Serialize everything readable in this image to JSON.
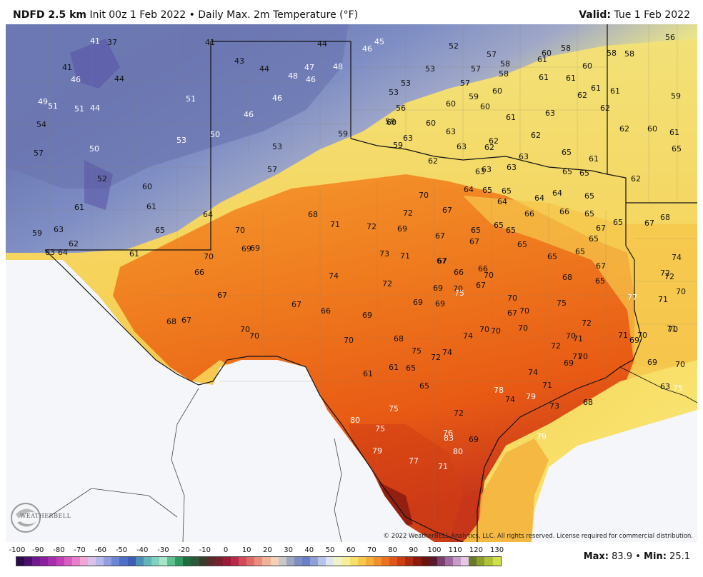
{
  "header": {
    "product": "NDFD 2.5 km",
    "init": "Init 00z 1 Feb 2022",
    "separator": "•",
    "field": "Daily Max. 2m Temperature (°F)",
    "valid_label": "Valid:",
    "valid_date": "Tue 1 Feb 2022"
  },
  "copyright": "© 2022 WeatherBELL Analytics, LLC. All rights reserved. License required for commercial distribution.",
  "logo_text": "WEATHERBELL",
  "legend": {
    "ticks": [
      "-100",
      "-90",
      "-80",
      "-70",
      "-60",
      "-50",
      "-40",
      "-30",
      "-20",
      "-10",
      "0",
      "10",
      "20",
      "30",
      "40",
      "50",
      "60",
      "70",
      "80",
      "90",
      "100",
      "110",
      "120",
      "130"
    ],
    "colors": [
      "#2a0a4a",
      "#4a0f6e",
      "#6e1a8c",
      "#8c1f9e",
      "#a62fae",
      "#c23fb8",
      "#d85fbf",
      "#e87fc8",
      "#f0a6d6",
      "#d8c2ea",
      "#b6b8ea",
      "#8f9fe0",
      "#6b86d4",
      "#4e6fc6",
      "#3d5db6",
      "#4e8fb8",
      "#62b5b8",
      "#7fd1c0",
      "#a3e6c8",
      "#5ec28f",
      "#2f9a5f",
      "#1f6e3f",
      "#2b5a3a",
      "#3a3d2e",
      "#5a2b2b",
      "#7a1f2e",
      "#9a1b3a",
      "#b82a4a",
      "#d24a5a",
      "#e06a6a",
      "#ea8f7f",
      "#f0b39a",
      "#f4d0b4",
      "#c8c8c8",
      "#a0a8c0",
      "#7d8fc0",
      "#6a7fc8",
      "#8fa0d8",
      "#b6c4e8",
      "#dde5ef",
      "#f2f2c8",
      "#f6ef9a",
      "#f7e06a",
      "#f7c84a",
      "#f5ae3c",
      "#f2902e",
      "#ec7222",
      "#e0571a",
      "#cc3e14",
      "#b02a10",
      "#8c1a0e",
      "#6e120e",
      "#5a1a2e",
      "#7a3f6a",
      "#9f6a9f",
      "#c79ac8",
      "#e6c8e6",
      "#6b7a2a",
      "#8da02e",
      "#b0c23a",
      "#cfe04a"
    ]
  },
  "stats": {
    "max_label": "Max",
    "max_value": "83.9",
    "sep": "•",
    "min_label": "Min",
    "min_value": "25.1"
  },
  "station_values": [
    {
      "v": "41",
      "c": "w"
    },
    {
      "v": "37",
      "c": "k"
    },
    {
      "v": "41",
      "c": "k"
    },
    {
      "v": "41",
      "c": "k"
    },
    {
      "v": "46",
      "c": "w"
    },
    {
      "v": "44",
      "c": "k"
    },
    {
      "v": "44",
      "c": "k"
    },
    {
      "v": "46",
      "c": "w"
    },
    {
      "v": "45",
      "c": "w"
    },
    {
      "v": "43",
      "c": "k"
    },
    {
      "v": "44",
      "c": "k"
    },
    {
      "v": "47",
      "c": "w"
    },
    {
      "v": "48",
      "c": "w"
    },
    {
      "v": "48",
      "c": "w"
    },
    {
      "v": "46",
      "c": "w"
    },
    {
      "v": "46",
      "c": "w"
    },
    {
      "v": "49",
      "c": "w"
    },
    {
      "v": "51",
      "c": "w"
    },
    {
      "v": "51",
      "c": "w"
    },
    {
      "v": "44",
      "c": "w"
    },
    {
      "v": "51",
      "c": "w"
    },
    {
      "v": "46",
      "c": "w"
    },
    {
      "v": "54",
      "c": "k"
    },
    {
      "v": "50",
      "c": "w"
    },
    {
      "v": "50",
      "c": "w"
    },
    {
      "v": "53",
      "c": "w"
    },
    {
      "v": "53",
      "c": "k"
    },
    {
      "v": "57",
      "c": "k"
    },
    {
      "v": "52",
      "c": "k"
    },
    {
      "v": "57",
      "c": "k"
    },
    {
      "v": "59",
      "c": "k"
    },
    {
      "v": "60",
      "c": "k"
    },
    {
      "v": "61",
      "c": "k"
    },
    {
      "v": "61",
      "c": "k"
    },
    {
      "v": "65",
      "c": "k"
    },
    {
      "v": "64",
      "c": "k"
    },
    {
      "v": "59",
      "c": "k"
    },
    {
      "v": "63",
      "c": "k"
    },
    {
      "v": "62",
      "c": "k"
    },
    {
      "v": "63",
      "c": "k"
    },
    {
      "v": "64",
      "c": "k"
    },
    {
      "v": "61",
      "c": "k"
    },
    {
      "v": "52",
      "c": "k"
    },
    {
      "v": "57",
      "c": "k"
    },
    {
      "v": "58",
      "c": "k"
    },
    {
      "v": "60",
      "c": "k"
    },
    {
      "v": "58",
      "c": "k"
    },
    {
      "v": "58",
      "c": "k"
    },
    {
      "v": "56",
      "c": "k"
    },
    {
      "v": "53",
      "c": "k"
    },
    {
      "v": "57",
      "c": "k"
    },
    {
      "v": "58",
      "c": "k"
    },
    {
      "v": "61",
      "c": "k"
    },
    {
      "v": "60",
      "c": "k"
    },
    {
      "v": "58",
      "c": "k"
    },
    {
      "v": "53",
      "c": "k"
    },
    {
      "v": "57",
      "c": "k"
    },
    {
      "v": "61",
      "c": "k"
    },
    {
      "v": "61",
      "c": "k"
    },
    {
      "v": "61",
      "c": "k"
    },
    {
      "v": "53",
      "c": "k"
    },
    {
      "v": "59",
      "c": "k"
    },
    {
      "v": "60",
      "c": "k"
    },
    {
      "v": "62",
      "c": "k"
    },
    {
      "v": "61",
      "c": "k"
    },
    {
      "v": "59",
      "c": "k"
    },
    {
      "v": "56",
      "c": "k"
    },
    {
      "v": "60",
      "c": "k"
    },
    {
      "v": "60",
      "c": "k"
    },
    {
      "v": "62",
      "c": "k"
    },
    {
      "v": "60",
      "c": "k"
    },
    {
      "v": "61",
      "c": "k"
    },
    {
      "v": "62",
      "c": "k"
    },
    {
      "v": "59",
      "c": "k"
    },
    {
      "v": "60",
      "c": "k"
    },
    {
      "v": "60",
      "c": "k"
    },
    {
      "v": "63",
      "c": "k"
    },
    {
      "v": "62",
      "c": "k"
    },
    {
      "v": "61",
      "c": "k"
    },
    {
      "v": "63",
      "c": "k"
    },
    {
      "v": "62",
      "c": "k"
    },
    {
      "v": "59",
      "c": "k"
    },
    {
      "v": "63",
      "c": "k"
    },
    {
      "v": "62",
      "c": "k"
    },
    {
      "v": "63",
      "c": "k"
    },
    {
      "v": "65",
      "c": "k"
    },
    {
      "v": "65",
      "c": "k"
    },
    {
      "v": "63",
      "c": "k"
    },
    {
      "v": "62",
      "c": "k"
    },
    {
      "v": "61",
      "c": "k"
    },
    {
      "v": "62",
      "c": "k"
    },
    {
      "v": "63",
      "c": "k"
    },
    {
      "v": "65",
      "c": "k"
    },
    {
      "v": "65",
      "c": "k"
    },
    {
      "v": "63",
      "c": "k"
    },
    {
      "v": "63",
      "c": "k"
    },
    {
      "v": "64",
      "c": "k"
    },
    {
      "v": "65",
      "c": "k"
    },
    {
      "v": "65",
      "c": "k"
    },
    {
      "v": "64",
      "c": "k"
    },
    {
      "v": "64",
      "c": "k"
    },
    {
      "v": "65",
      "c": "k"
    },
    {
      "v": "65",
      "c": "k"
    },
    {
      "v": "64",
      "c": "k"
    },
    {
      "v": "70",
      "c": "k"
    },
    {
      "v": "68",
      "c": "k"
    },
    {
      "v": "72",
      "c": "k"
    },
    {
      "v": "67",
      "c": "k"
    },
    {
      "v": "66",
      "c": "k"
    },
    {
      "v": "66",
      "c": "k"
    },
    {
      "v": "65",
      "c": "k"
    },
    {
      "v": "67",
      "c": "k"
    },
    {
      "v": "68",
      "c": "k"
    },
    {
      "v": "67",
      "c": "k"
    },
    {
      "v": "71",
      "c": "k"
    },
    {
      "v": "72",
      "c": "k"
    },
    {
      "v": "69",
      "c": "k"
    },
    {
      "v": "67",
      "c": "k"
    },
    {
      "v": "65",
      "c": "k"
    },
    {
      "v": "65",
      "c": "k"
    },
    {
      "v": "65",
      "c": "k"
    },
    {
      "v": "67",
      "c": "k"
    },
    {
      "v": "70",
      "c": "k"
    },
    {
      "v": "69",
      "c": "k"
    },
    {
      "v": "69",
      "c": "k"
    },
    {
      "v": "65",
      "c": "k"
    },
    {
      "v": "65",
      "c": "k"
    },
    {
      "v": "65",
      "c": "k"
    },
    {
      "v": "65",
      "c": "k"
    },
    {
      "v": "67",
      "c": "k"
    },
    {
      "v": "73",
      "c": "k"
    },
    {
      "v": "71",
      "c": "k"
    },
    {
      "v": "67",
      "c": "k"
    },
    {
      "v": "66",
      "c": "k"
    },
    {
      "v": "70",
      "c": "k"
    },
    {
      "v": "74",
      "c": "k"
    },
    {
      "v": "72",
      "c": "k"
    },
    {
      "v": "67",
      "c": "k"
    },
    {
      "v": "66",
      "c": "k"
    },
    {
      "v": "68",
      "c": "k"
    },
    {
      "v": "67",
      "c": "k"
    },
    {
      "v": "74",
      "c": "k"
    },
    {
      "v": "72",
      "c": "k"
    },
    {
      "v": "72",
      "c": "k"
    },
    {
      "v": "75",
      "c": "w"
    },
    {
      "v": "70",
      "c": "k"
    },
    {
      "v": "67",
      "c": "k"
    },
    {
      "v": "66",
      "c": "k"
    },
    {
      "v": "66",
      "c": "k"
    },
    {
      "v": "65",
      "c": "k"
    },
    {
      "v": "69",
      "c": "k"
    },
    {
      "v": "69",
      "c": "k"
    },
    {
      "v": "69",
      "c": "k"
    },
    {
      "v": "70",
      "c": "k"
    },
    {
      "v": "69",
      "c": "k"
    },
    {
      "v": "70",
      "c": "k"
    },
    {
      "v": "67",
      "c": "k"
    },
    {
      "v": "70",
      "c": "k"
    },
    {
      "v": "75",
      "c": "k"
    },
    {
      "v": "77",
      "c": "w"
    },
    {
      "v": "71",
      "c": "k"
    },
    {
      "v": "70",
      "c": "k"
    },
    {
      "v": "68",
      "c": "k"
    },
    {
      "v": "67",
      "c": "k"
    },
    {
      "v": "67",
      "c": "k"
    },
    {
      "v": "70",
      "c": "k"
    },
    {
      "v": "70",
      "c": "k"
    },
    {
      "v": "68",
      "c": "k"
    },
    {
      "v": "70",
      "c": "k"
    },
    {
      "v": "70",
      "c": "k"
    },
    {
      "v": "70",
      "c": "k"
    },
    {
      "v": "72",
      "c": "k"
    },
    {
      "v": "71",
      "c": "k"
    },
    {
      "v": "72",
      "c": "k"
    },
    {
      "v": "70",
      "c": "k"
    },
    {
      "v": "71",
      "c": "k"
    },
    {
      "v": "70",
      "c": "k"
    },
    {
      "v": "71",
      "c": "k"
    },
    {
      "v": "69",
      "c": "k"
    },
    {
      "v": "70",
      "c": "k"
    },
    {
      "v": "75",
      "c": "k"
    },
    {
      "v": "72",
      "c": "k"
    },
    {
      "v": "74",
      "c": "k"
    },
    {
      "v": "74",
      "c": "k"
    },
    {
      "v": "71",
      "c": "k"
    },
    {
      "v": "70",
      "c": "k"
    },
    {
      "v": "70",
      "c": "k"
    },
    {
      "v": "61",
      "c": "k"
    },
    {
      "v": "61",
      "c": "k"
    },
    {
      "v": "65",
      "c": "k"
    },
    {
      "v": "74",
      "c": "k"
    },
    {
      "v": "71",
      "c": "k"
    },
    {
      "v": "69",
      "c": "k"
    },
    {
      "v": "69",
      "c": "k"
    },
    {
      "v": "70",
      "c": "k"
    },
    {
      "v": "63",
      "c": "k"
    },
    {
      "v": "65",
      "c": "k"
    },
    {
      "v": "78",
      "c": "w"
    },
    {
      "v": "74",
      "c": "k"
    },
    {
      "v": "79",
      "c": "w"
    },
    {
      "v": "73",
      "c": "k"
    },
    {
      "v": "68",
      "c": "k"
    },
    {
      "v": "75",
      "c": "w"
    },
    {
      "v": "75",
      "c": "w"
    },
    {
      "v": "72",
      "c": "k"
    },
    {
      "v": "80",
      "c": "w"
    },
    {
      "v": "75",
      "c": "w"
    },
    {
      "v": "79",
      "c": "w"
    },
    {
      "v": "76",
      "c": "w"
    },
    {
      "v": "83",
      "c": "w"
    },
    {
      "v": "69",
      "c": "k"
    },
    {
      "v": "79",
      "c": "w"
    },
    {
      "v": "80",
      "c": "w"
    },
    {
      "v": "77",
      "c": "w"
    },
    {
      "v": "71",
      "c": "w"
    }
  ]
}
